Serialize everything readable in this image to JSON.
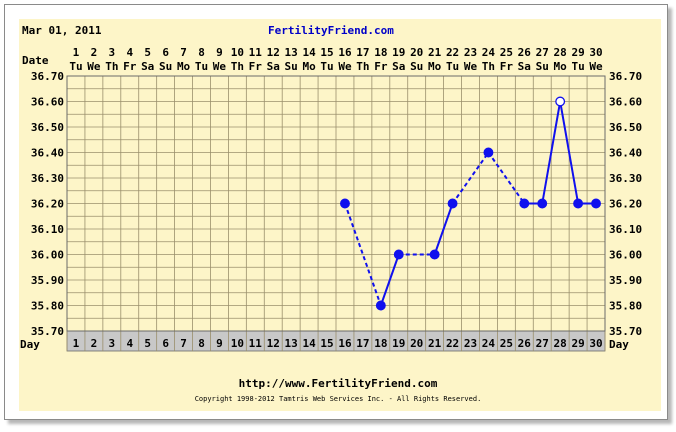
{
  "header": {
    "date": "Mar 01, 2011",
    "site": "FertilityFriend.com"
  },
  "footer": {
    "url": "http://www.FertilityFriend.com",
    "copyright": "Copyright 1998-2012 Tamtris Web Services Inc. - All Rights Reserved."
  },
  "chart_data": {
    "type": "line",
    "row_labels": {
      "top": "Date",
      "bottom": "Day"
    },
    "dates": [
      "1",
      "2",
      "3",
      "4",
      "5",
      "6",
      "7",
      "8",
      "9",
      "10",
      "11",
      "12",
      "13",
      "14",
      "15",
      "16",
      "17",
      "18",
      "19",
      "20",
      "21",
      "22",
      "23",
      "24",
      "25",
      "26",
      "27",
      "28",
      "29",
      "30"
    ],
    "weekdays": [
      "Tu",
      "We",
      "Th",
      "Fr",
      "Sa",
      "Su",
      "Mo",
      "Tu",
      "We",
      "Th",
      "Fr",
      "Sa",
      "Su",
      "Mo",
      "Tu",
      "We",
      "Th",
      "Fr",
      "Sa",
      "Su",
      "Mo",
      "Tu",
      "We",
      "Th",
      "Fr",
      "Sa",
      "Su",
      "Mo",
      "Tu",
      "We"
    ],
    "days": [
      "1",
      "2",
      "3",
      "4",
      "5",
      "6",
      "7",
      "8",
      "9",
      "10",
      "11",
      "12",
      "13",
      "14",
      "15",
      "16",
      "17",
      "18",
      "19",
      "20",
      "21",
      "22",
      "23",
      "24",
      "25",
      "26",
      "27",
      "28",
      "29",
      "30"
    ],
    "y_ticks": [
      "36.70",
      "36.60",
      "36.50",
      "36.40",
      "36.30",
      "36.20",
      "36.10",
      "36.00",
      "35.90",
      "35.80",
      "35.70"
    ],
    "ylim": [
      35.7,
      36.7
    ],
    "grid": true,
    "series": [
      {
        "points": [
          {
            "day": 16,
            "temp": 36.2
          },
          {
            "day": 18,
            "temp": 35.8
          },
          {
            "day": 19,
            "temp": 36.0
          },
          {
            "day": 21,
            "temp": 36.0
          },
          {
            "day": 22,
            "temp": 36.2
          },
          {
            "day": 24,
            "temp": 36.4
          },
          {
            "day": 26,
            "temp": 36.2
          },
          {
            "day": 27,
            "temp": 36.2
          },
          {
            "day": 28,
            "temp": 36.6,
            "open": true
          },
          {
            "day": 29,
            "temp": 36.2
          },
          {
            "day": 30,
            "temp": 36.2
          }
        ]
      }
    ],
    "colors": {
      "background": "#fdf5c8",
      "grid": "#9a8f6c",
      "line": "#1010ee",
      "day_row": "#c8c8c8",
      "text": "#000000"
    }
  }
}
